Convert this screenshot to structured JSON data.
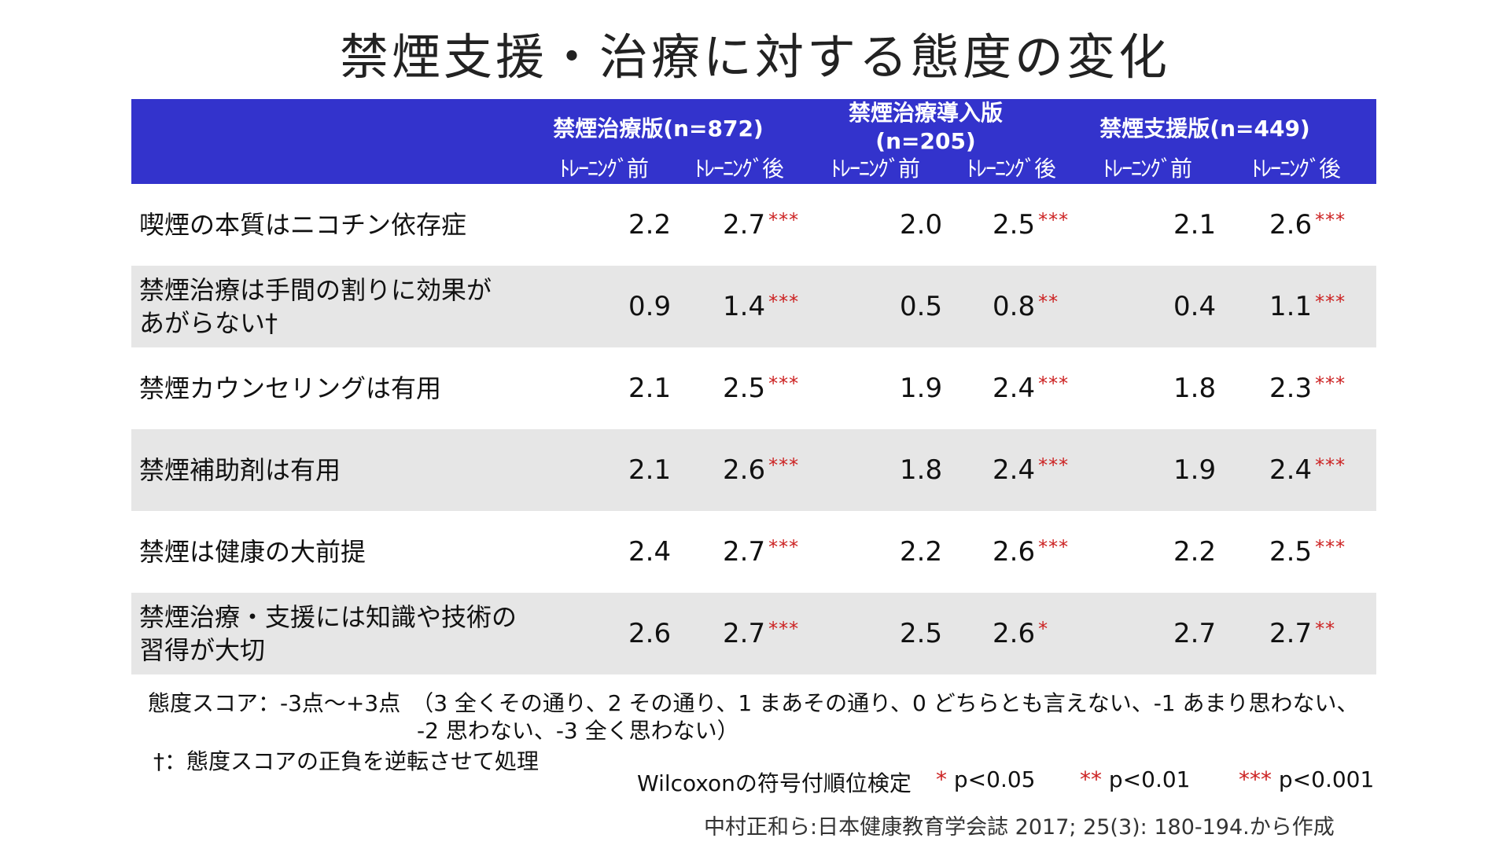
{
  "title": "禁煙支援・治療に対する態度の変化",
  "header": {
    "groups": [
      "禁煙治療版(n=872)",
      "禁煙治療導入版",
      "(n=205)",
      "禁煙支援版(n=449)"
    ],
    "sub_before": "ﾄﾚｰﾆﾝｸﾞ前",
    "sub_after": "ﾄﾚｰﾆﾝｸﾞ後"
  },
  "rows": [
    {
      "label": "喫煙の本質はニコチン依存症",
      "v": [
        "2.2",
        "2.7",
        "2.0",
        "2.5",
        "2.1",
        "2.6"
      ],
      "s": [
        "",
        "***",
        "",
        "***",
        "",
        "***"
      ]
    },
    {
      "label": "禁煙治療は手間の割りに効果が",
      "label2": "あがらない†",
      "v": [
        "0.9",
        "1.4",
        "0.5",
        "0.8",
        "0.4",
        "1.1"
      ],
      "s": [
        "",
        "***",
        "",
        "**",
        "",
        "***"
      ]
    },
    {
      "label": "禁煙カウンセリングは有用",
      "v": [
        "2.1",
        "2.5",
        "1.9",
        "2.4",
        "1.8",
        "2.3"
      ],
      "s": [
        "",
        "***",
        "",
        "***",
        "",
        "***"
      ]
    },
    {
      "label": "禁煙補助剤は有用",
      "v": [
        "2.1",
        "2.6",
        "1.8",
        "2.4",
        "1.9",
        "2.4"
      ],
      "s": [
        "",
        "***",
        "",
        "***",
        "",
        "***"
      ]
    },
    {
      "label": "禁煙は健康の大前提",
      "v": [
        "2.4",
        "2.7",
        "2.2",
        "2.6",
        "2.2",
        "2.5"
      ],
      "s": [
        "",
        "***",
        "",
        "***",
        "",
        "***"
      ]
    },
    {
      "label": "禁煙治療・支援には知識や技術の",
      "label2": "習得が大切",
      "v": [
        "2.6",
        "2.7",
        "2.5",
        "2.6",
        "2.7",
        "2.7"
      ],
      "s": [
        "",
        "***",
        "",
        "*",
        "",
        "**"
      ]
    }
  ],
  "notes": {
    "score1": "態度スコア：-3点～+3点　（3 全くその通り、2 その通り、1 まあその通り、0 どちらとも言えない、-1 あまり思わない、",
    "score2": "-2 思わない、-3 全く思わない）",
    "dagger": "†：態度スコアの正負を逆転させて処理"
  },
  "legend": {
    "test": "Wilcoxonの符号付順位検定",
    "s1": "*",
    "p1": " p<0.05",
    "s2": "**",
    "p2": " p<0.01",
    "s3": "***",
    "p3": " p<0.001"
  },
  "citation": "中村正和ら:日本健康教育学会誌 2017; 25(3): 180-194.から作成",
  "colors": {
    "header_bg": "#3333cc",
    "shade": "#e6e6e6",
    "star": "#cc2222"
  }
}
